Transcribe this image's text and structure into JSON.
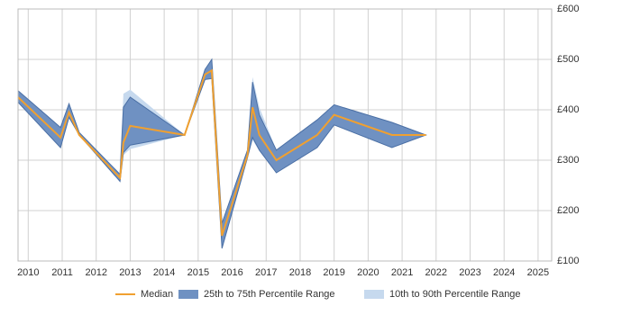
{
  "chart_data": {
    "type": "range-line",
    "x": [
      2009.7,
      2010.95,
      2011.2,
      2011.5,
      2012.7,
      2012.8,
      2013.0,
      2014.6,
      2015.2,
      2015.4,
      2015.7,
      2016.45,
      2016.6,
      2016.8,
      2017.3,
      2018.5,
      2019.0,
      2020.7,
      2021.7
    ],
    "series": [
      {
        "name": "10th to 90th Percentile Range",
        "color": "#c6d9ee",
        "low": [
          415,
          325,
          385,
          350,
          258,
          310,
          322,
          350,
          460,
          462,
          125,
          305,
          340,
          318,
          275,
          325,
          370,
          325,
          350
        ],
        "high": [
          438,
          365,
          412,
          355,
          272,
          432,
          440,
          350,
          480,
          500,
          175,
          320,
          465,
          405,
          320,
          380,
          410,
          375,
          350
        ]
      },
      {
        "name": "25th to 75th Percentile Range",
        "color": "#6f91c2",
        "low": [
          415,
          325,
          385,
          350,
          258,
          315,
          330,
          350,
          460,
          462,
          125,
          305,
          345,
          320,
          275,
          325,
          370,
          325,
          350
        ],
        "high": [
          438,
          365,
          412,
          355,
          272,
          405,
          425,
          350,
          480,
          500,
          175,
          320,
          455,
          390,
          320,
          380,
          410,
          375,
          350
        ]
      },
      {
        "name": "Median",
        "color": "#f0a030",
        "values": [
          425,
          345,
          395,
          350,
          265,
          335,
          368,
          350,
          470,
          478,
          150,
          310,
          405,
          350,
          300,
          350,
          390,
          350,
          350
        ]
      }
    ],
    "legend_order": [
      2,
      1,
      0
    ],
    "xlim": [
      2009.7,
      2025.4
    ],
    "xticks": [
      2010,
      2011,
      2012,
      2013,
      2014,
      2015,
      2016,
      2017,
      2018,
      2019,
      2020,
      2021,
      2022,
      2023,
      2024,
      2025
    ],
    "ylim": [
      100,
      600
    ],
    "yticks": [
      {
        "value": 100,
        "label": "£100"
      },
      {
        "value": 200,
        "label": "£200"
      },
      {
        "value": 300,
        "label": "£300"
      },
      {
        "value": 400,
        "label": "£400"
      },
      {
        "value": 500,
        "label": "£500"
      },
      {
        "value": 600,
        "label": "£600"
      }
    ],
    "grid": true
  }
}
